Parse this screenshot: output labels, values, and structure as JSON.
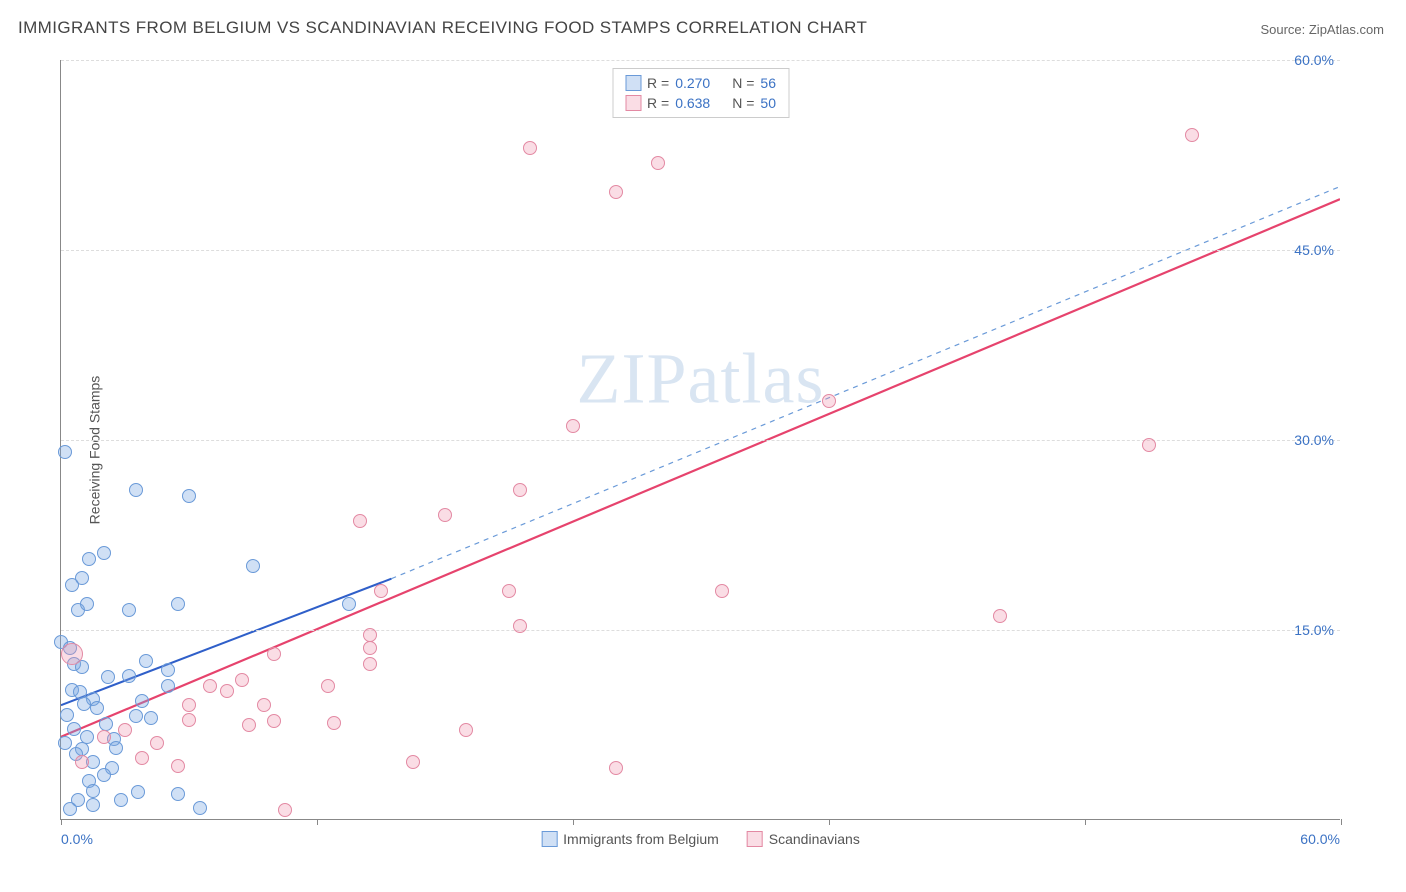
{
  "title": "IMMIGRANTS FROM BELGIUM VS SCANDINAVIAN RECEIVING FOOD STAMPS CORRELATION CHART",
  "source": "Source: ZipAtlas.com",
  "watermark": "ZIPatlas",
  "chart": {
    "type": "scatter",
    "x_min": 0,
    "x_max": 60,
    "y_min": 0,
    "y_max": 60,
    "x_ticks": [
      0,
      12,
      24,
      36,
      48,
      60
    ],
    "y_ticks": [
      15,
      30,
      45,
      60
    ],
    "x_label_min": "0.0%",
    "x_label_max": "60.0%",
    "y_labels": [
      "15.0%",
      "30.0%",
      "45.0%",
      "60.0%"
    ],
    "y_axis_title": "Receiving Food Stamps",
    "bg": "#ffffff",
    "grid_color": "#dddddd",
    "axis_color": "#888888",
    "label_color": "#3b72c4",
    "marker_radius": 7,
    "marker_radius_large": 11,
    "series": [
      {
        "name": "Immigrants from Belgium",
        "fill": "rgba(120,165,225,0.35)",
        "stroke": "#6a9ad8",
        "R": "0.270",
        "N": "56",
        "trend": {
          "x1": 0,
          "y1": 9,
          "x2": 15.5,
          "y2": 19,
          "color": "#2f5fc9",
          "width": 2,
          "dash": "none"
        },
        "trend_ext": {
          "x1": 15.5,
          "y1": 19,
          "x2": 60,
          "y2": 50,
          "color": "#6a9ad8",
          "width": 1.2,
          "dash": "5,5"
        },
        "points": [
          {
            "x": 0.2,
            "y": 29
          },
          {
            "x": 3.5,
            "y": 26
          },
          {
            "x": 6,
            "y": 25.5
          },
          {
            "x": 9,
            "y": 20
          },
          {
            "x": 2,
            "y": 21
          },
          {
            "x": 1,
            "y": 19
          },
          {
            "x": 1.3,
            "y": 20.5
          },
          {
            "x": 0.5,
            "y": 18.5
          },
          {
            "x": 0.8,
            "y": 16.5
          },
          {
            "x": 1.2,
            "y": 17
          },
          {
            "x": 5.5,
            "y": 17
          },
          {
            "x": 3.2,
            "y": 16.5
          },
          {
            "x": 0,
            "y": 14
          },
          {
            "x": 0.4,
            "y": 13.5
          },
          {
            "x": 4,
            "y": 12.5
          },
          {
            "x": 0.6,
            "y": 12.2
          },
          {
            "x": 1,
            "y": 12
          },
          {
            "x": 2.2,
            "y": 11.2
          },
          {
            "x": 5,
            "y": 11.8
          },
          {
            "x": 3.2,
            "y": 11.3
          },
          {
            "x": 13.5,
            "y": 17
          },
          {
            "x": 5,
            "y": 10.5
          },
          {
            "x": 0.5,
            "y": 10.2
          },
          {
            "x": 0.9,
            "y": 10
          },
          {
            "x": 1.5,
            "y": 9.5
          },
          {
            "x": 3.8,
            "y": 9.3
          },
          {
            "x": 1.1,
            "y": 9.1
          },
          {
            "x": 1.7,
            "y": 8.8
          },
          {
            "x": 0.3,
            "y": 8.2
          },
          {
            "x": 3.5,
            "y": 8.1
          },
          {
            "x": 4.2,
            "y": 8
          },
          {
            "x": 2.1,
            "y": 7.5
          },
          {
            "x": 0.6,
            "y": 7.1
          },
          {
            "x": 1.2,
            "y": 6.5
          },
          {
            "x": 2.5,
            "y": 6.3
          },
          {
            "x": 0.2,
            "y": 6
          },
          {
            "x": 1,
            "y": 5.5
          },
          {
            "x": 2.6,
            "y": 5.6
          },
          {
            "x": 0.7,
            "y": 5.1
          },
          {
            "x": 1.5,
            "y": 4.5
          },
          {
            "x": 2.4,
            "y": 4
          },
          {
            "x": 2,
            "y": 3.5
          },
          {
            "x": 1.3,
            "y": 3
          },
          {
            "x": 1.5,
            "y": 2.2
          },
          {
            "x": 2.8,
            "y": 1.5
          },
          {
            "x": 5.5,
            "y": 2
          },
          {
            "x": 3.6,
            "y": 2.1
          },
          {
            "x": 0.8,
            "y": 1.5
          },
          {
            "x": 1.5,
            "y": 1.1
          },
          {
            "x": 6.5,
            "y": 0.9
          },
          {
            "x": 0.4,
            "y": 0.8
          }
        ]
      },
      {
        "name": "Scandinavians",
        "fill": "rgba(240,150,175,0.32)",
        "stroke": "#e389a3",
        "R": "0.638",
        "N": "50",
        "trend": {
          "x1": 0,
          "y1": 6.5,
          "x2": 60,
          "y2": 49,
          "color": "#e6436d",
          "width": 2.2,
          "dash": "none"
        },
        "points": [
          {
            "x": 53,
            "y": 54
          },
          {
            "x": 28,
            "y": 51.8
          },
          {
            "x": 22,
            "y": 53
          },
          {
            "x": 26,
            "y": 49.5
          },
          {
            "x": 36,
            "y": 33
          },
          {
            "x": 24,
            "y": 31
          },
          {
            "x": 51,
            "y": 29.5
          },
          {
            "x": 44,
            "y": 16
          },
          {
            "x": 18,
            "y": 24
          },
          {
            "x": 21.5,
            "y": 26
          },
          {
            "x": 14,
            "y": 23.5
          },
          {
            "x": 15,
            "y": 18
          },
          {
            "x": 31,
            "y": 18
          },
          {
            "x": 21,
            "y": 18
          },
          {
            "x": 21.5,
            "y": 15.2
          },
          {
            "x": 14.5,
            "y": 13.5
          },
          {
            "x": 14.5,
            "y": 12.2
          },
          {
            "x": 10,
            "y": 13
          },
          {
            "x": 8.5,
            "y": 11
          },
          {
            "x": 12.5,
            "y": 10.5
          },
          {
            "x": 7,
            "y": 10.5
          },
          {
            "x": 7.8,
            "y": 10.1
          },
          {
            "x": 6,
            "y": 9
          },
          {
            "x": 14.5,
            "y": 14.5
          },
          {
            "x": 6,
            "y": 7.8
          },
          {
            "x": 10,
            "y": 7.7
          },
          {
            "x": 8.8,
            "y": 7.4
          },
          {
            "x": 9.5,
            "y": 9
          },
          {
            "x": 12.8,
            "y": 7.6
          },
          {
            "x": 19,
            "y": 7
          },
          {
            "x": 16.5,
            "y": 4.5
          },
          {
            "x": 26,
            "y": 4
          },
          {
            "x": 2,
            "y": 6.5
          },
          {
            "x": 3,
            "y": 7
          },
          {
            "x": 4.5,
            "y": 6
          },
          {
            "x": 1,
            "y": 4.5
          },
          {
            "x": 3.8,
            "y": 4.8
          },
          {
            "x": 5.5,
            "y": 4.2
          },
          {
            "x": 10.5,
            "y": 0.7
          },
          {
            "x": 0.5,
            "y": 13,
            "large": true
          }
        ]
      }
    ]
  },
  "top_legend": {
    "rows": [
      {
        "swatch_fill": "rgba(120,165,225,0.35)",
        "swatch_stroke": "#6a9ad8",
        "r_label": "R =",
        "r": "0.270",
        "n_label": "N =",
        "n": "56"
      },
      {
        "swatch_fill": "rgba(240,150,175,0.32)",
        "swatch_stroke": "#e389a3",
        "r_label": "R =",
        "r": "0.638",
        "n_label": "N =",
        "n": "50"
      }
    ]
  },
  "bottom_legend": [
    {
      "fill": "rgba(120,165,225,0.35)",
      "stroke": "#6a9ad8",
      "label": "Immigrants from Belgium"
    },
    {
      "fill": "rgba(240,150,175,0.32)",
      "stroke": "#e389a3",
      "label": "Scandinavians"
    }
  ]
}
